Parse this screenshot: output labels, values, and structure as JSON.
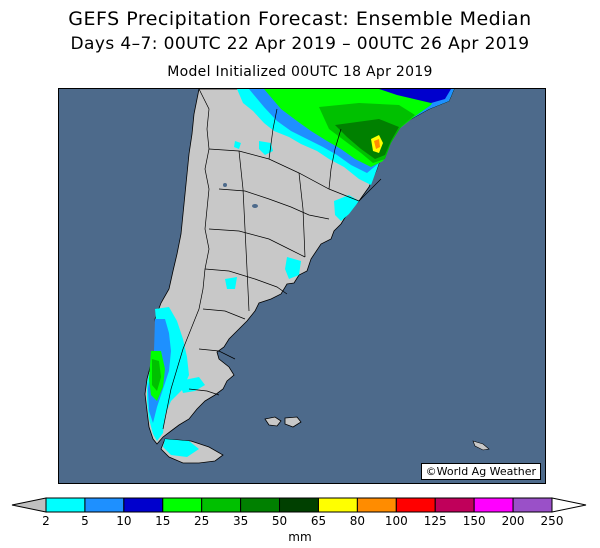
{
  "title": "GEFS Precipitation Forecast: Ensemble Median",
  "subtitle": "Days 4–7: 00UTC 22 Apr 2019 – 00UTC 26 Apr 2019",
  "init_line": "Model Initialized 00UTC 18 Apr 2019",
  "credit": "©World Ag Weather",
  "colors": {
    "ocean": "#4d6a8b",
    "land": "#c8c8c8",
    "border": "#000000"
  },
  "legend": {
    "unit": "mm",
    "ticks": [
      "2",
      "5",
      "10",
      "15",
      "25",
      "35",
      "50",
      "65",
      "80",
      "100",
      "125",
      "150",
      "200",
      "250"
    ],
    "bin_colors": [
      "#00ffff",
      "#1e90ff",
      "#0000cd",
      "#00ff00",
      "#00c000",
      "#008000",
      "#004000",
      "#ffff00",
      "#ff8c00",
      "#ff0000",
      "#c0005a",
      "#ff00ff",
      "#9a50c8"
    ],
    "under_color": "#c0c0c0",
    "over_color": "#ffffff"
  }
}
